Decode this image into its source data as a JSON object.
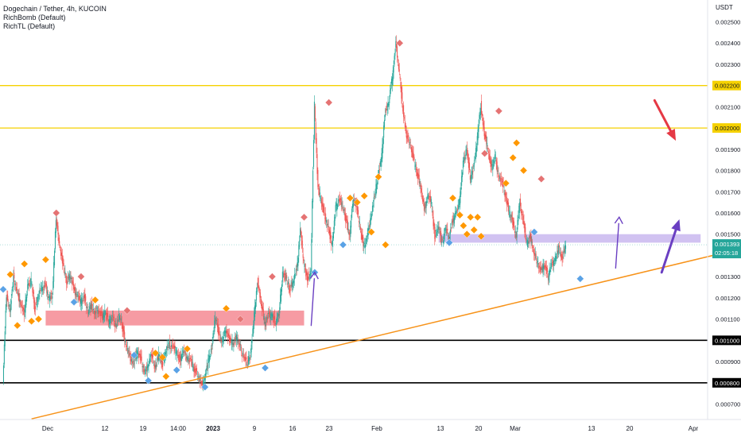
{
  "header": {
    "title": "Dogechain / Tether, 4h, KUCOIN",
    "indicators": [
      "RichBomb (Default)",
      "RichTL (Default)"
    ]
  },
  "colors": {
    "background": "#ffffff",
    "candle_up": "#26a69a",
    "candle_down": "#ef5350",
    "yellow_line": "#f5d100",
    "black_line": "#000000",
    "trendline": "#f7931a",
    "red_zone": "#f48a93",
    "purple_zone": "#c9b7ef",
    "purple_arrow": "#6a3fc2",
    "red_arrow": "#e53945",
    "diamond_red": "#e57373",
    "diamond_orange": "#ff9800",
    "diamond_blue": "#5aa2e6",
    "price_tag": "#26a69a"
  },
  "chart_data": {
    "type": "line",
    "title": "Dogechain / Tether, 4h, KUCOIN",
    "currency_label": "USDT",
    "y_ticks": [
      "0.002500",
      "0.002400",
      "0.002300",
      "0.002200",
      "0.002100",
      "0.002000",
      "0.001900",
      "0.001800",
      "0.001700",
      "0.001600",
      "0.001500",
      "0.001400",
      "0.001300",
      "0.001200",
      "0.001100",
      "0.001000",
      "0.000900",
      "0.000800",
      "0.000700"
    ],
    "x_ticks": [
      "Dec",
      "12",
      "19",
      "14:00",
      "2023",
      "9",
      "16",
      "23",
      "Feb",
      "13",
      "20",
      "Mar",
      "13",
      "20",
      "Apr"
    ],
    "ylim": [
      0.00065,
      0.00255
    ],
    "series": [
      {
        "values": [
          0.00082,
          0.00121,
          0.00114,
          0.0013,
          0.00122,
          0.00118,
          0.00112,
          0.00126,
          0.00128,
          0.00115,
          0.00121,
          0.00125,
          0.00126,
          0.00119,
          0.00122,
          0.00157,
          0.00145,
          0.00135,
          0.00128,
          0.00131,
          0.00124,
          0.00121,
          0.00118,
          0.00121,
          0.00113,
          0.00117,
          0.00112,
          0.00115,
          0.00111,
          0.00113,
          0.00109,
          0.0011,
          0.00107,
          0.00112,
          0.00104,
          0.00096,
          0.00092,
          0.00089,
          0.00095,
          0.00091,
          0.00084,
          0.00089,
          0.00093,
          0.00087,
          0.00093,
          0.00089,
          0.00095,
          0.00098,
          0.00097,
          0.00094,
          0.00091,
          0.00095,
          0.00092,
          0.0009,
          0.00087,
          0.00084,
          0.00079,
          0.00082,
          0.0009,
          0.00097,
          0.00111,
          0.00103,
          0.00099,
          0.00106,
          0.001,
          0.00098,
          0.00102,
          0.00096,
          0.00093,
          0.00089,
          0.00094,
          0.00112,
          0.00128,
          0.00117,
          0.00108,
          0.00112,
          0.00111,
          0.00109,
          0.00112,
          0.00132,
          0.00129,
          0.00124,
          0.00128,
          0.00133,
          0.00152,
          0.00136,
          0.00129,
          0.00132,
          0.00212,
          0.00171,
          0.00166,
          0.00158,
          0.00152,
          0.00145,
          0.00162,
          0.00167,
          0.00163,
          0.00156,
          0.00149,
          0.00168,
          0.00162,
          0.00152,
          0.00144,
          0.00149,
          0.00159,
          0.00168,
          0.00178,
          0.00187,
          0.00208,
          0.00212,
          0.00224,
          0.0024,
          0.00225,
          0.00209,
          0.00196,
          0.00193,
          0.00185,
          0.00179,
          0.00173,
          0.00161,
          0.00168,
          0.00165,
          0.00149,
          0.00154,
          0.00146,
          0.00152,
          0.00149,
          0.00156,
          0.0016,
          0.00166,
          0.00183,
          0.00191,
          0.00176,
          0.00182,
          0.00195,
          0.00211,
          0.00197,
          0.0019,
          0.00181,
          0.00186,
          0.00178,
          0.00174,
          0.00168,
          0.0016,
          0.00156,
          0.00149,
          0.00165,
          0.00156,
          0.00145,
          0.00149,
          0.00141,
          0.00137,
          0.00132,
          0.00136,
          0.0013,
          0.00136,
          0.00138,
          0.00143,
          0.00139,
          0.00145
        ]
      }
    ],
    "horizontal_levels": [
      {
        "price": 0.0022,
        "label": "0.002200",
        "style": "yellow"
      },
      {
        "price": 0.002,
        "label": "0.002000",
        "style": "yellow"
      },
      {
        "price": 0.001,
        "label": "0.001000",
        "style": "black"
      },
      {
        "price": 0.0008,
        "label": "0.000800",
        "style": "black"
      }
    ],
    "current_price": {
      "label": "0.001393",
      "countdown": "02:05:18"
    },
    "zones": [
      {
        "type": "red",
        "from_index": 12,
        "to_index": 85,
        "low": 0.00107,
        "high": 0.00114
      },
      {
        "type": "purple",
        "from_index": 123,
        "to_index": 197,
        "low": 0.00146,
        "high": 0.0015
      }
    ],
    "trendline": {
      "from_index": 8,
      "from_price": 0.00063,
      "to_index": 218,
      "to_price": 0.00147
    },
    "markers": [
      {
        "i": 0,
        "p": 0.00124,
        "c": "blue"
      },
      {
        "i": 2,
        "p": 0.00131,
        "c": "orange"
      },
      {
        "i": 4,
        "p": 0.00107,
        "c": "orange"
      },
      {
        "i": 6,
        "p": 0.00136,
        "c": "orange"
      },
      {
        "i": 8,
        "p": 0.00109,
        "c": "orange"
      },
      {
        "i": 10,
        "p": 0.0011,
        "c": "orange"
      },
      {
        "i": 12,
        "p": 0.00138,
        "c": "orange"
      },
      {
        "i": 15,
        "p": 0.0016,
        "c": "red"
      },
      {
        "i": 20,
        "p": 0.00118,
        "c": "blue"
      },
      {
        "i": 22,
        "p": 0.0013,
        "c": "red"
      },
      {
        "i": 26,
        "p": 0.00119,
        "c": "orange"
      },
      {
        "i": 35,
        "p": 0.00114,
        "c": "red"
      },
      {
        "i": 37,
        "p": 0.00093,
        "c": "blue"
      },
      {
        "i": 41,
        "p": 0.00081,
        "c": "blue"
      },
      {
        "i": 43,
        "p": 0.00094,
        "c": "orange"
      },
      {
        "i": 45,
        "p": 0.00092,
        "c": "orange"
      },
      {
        "i": 46,
        "p": 0.00083,
        "c": "orange"
      },
      {
        "i": 49,
        "p": 0.00086,
        "c": "blue"
      },
      {
        "i": 52,
        "p": 0.00096,
        "c": "orange"
      },
      {
        "i": 57,
        "p": 0.00078,
        "c": "blue"
      },
      {
        "i": 63,
        "p": 0.00115,
        "c": "orange"
      },
      {
        "i": 67,
        "p": 0.0011,
        "c": "red"
      },
      {
        "i": 74,
        "p": 0.00087,
        "c": "blue"
      },
      {
        "i": 76,
        "p": 0.0013,
        "c": "red"
      },
      {
        "i": 85,
        "p": 0.00158,
        "c": "red"
      },
      {
        "i": 88,
        "p": 0.00132,
        "c": "blue"
      },
      {
        "i": 92,
        "p": 0.00212,
        "c": "red"
      },
      {
        "i": 96,
        "p": 0.00145,
        "c": "blue"
      },
      {
        "i": 98,
        "p": 0.00167,
        "c": "orange"
      },
      {
        "i": 100,
        "p": 0.00165,
        "c": "orange"
      },
      {
        "i": 102,
        "p": 0.00168,
        "c": "orange"
      },
      {
        "i": 104,
        "p": 0.00151,
        "c": "orange"
      },
      {
        "i": 106,
        "p": 0.00177,
        "c": "orange"
      },
      {
        "i": 108,
        "p": 0.00145,
        "c": "orange"
      },
      {
        "i": 112,
        "p": 0.0024,
        "c": "red"
      },
      {
        "i": 126,
        "p": 0.00146,
        "c": "blue"
      },
      {
        "i": 127,
        "p": 0.00167,
        "c": "orange"
      },
      {
        "i": 129,
        "p": 0.00159,
        "c": "orange"
      },
      {
        "i": 130,
        "p": 0.00154,
        "c": "orange"
      },
      {
        "i": 131,
        "p": 0.0015,
        "c": "orange"
      },
      {
        "i": 132,
        "p": 0.00158,
        "c": "orange"
      },
      {
        "i": 133,
        "p": 0.00152,
        "c": "orange"
      },
      {
        "i": 134,
        "p": 0.00158,
        "c": "orange"
      },
      {
        "i": 135,
        "p": 0.00149,
        "c": "orange"
      },
      {
        "i": 136,
        "p": 0.00188,
        "c": "red"
      },
      {
        "i": 140,
        "p": 0.00208,
        "c": "red"
      },
      {
        "i": 142,
        "p": 0.00174,
        "c": "orange"
      },
      {
        "i": 144,
        "p": 0.00186,
        "c": "orange"
      },
      {
        "i": 145,
        "p": 0.00193,
        "c": "orange"
      },
      {
        "i": 147,
        "p": 0.0018,
        "c": "orange"
      },
      {
        "i": 150,
        "p": 0.00151,
        "c": "blue"
      },
      {
        "i": 152,
        "p": 0.00176,
        "c": "red"
      },
      {
        "i": 163,
        "p": 0.00129,
        "c": "blue"
      }
    ],
    "annotation_arrows": [
      {
        "color": "purple",
        "from_index": 87,
        "from_price": 0.00107,
        "to_index": 88,
        "to_price": 0.00132
      },
      {
        "color": "purple",
        "from_index": 173,
        "from_price": 0.00134,
        "to_index": 174,
        "to_price": 0.00158
      },
      {
        "color": "purple",
        "from_index": 186,
        "from_price": 0.00132,
        "to_index": 191,
        "to_price": 0.00157
      },
      {
        "color": "red",
        "from_index": 184,
        "from_price": 0.00213,
        "to_index": 190,
        "to_price": 0.00194
      }
    ],
    "grid": false
  }
}
